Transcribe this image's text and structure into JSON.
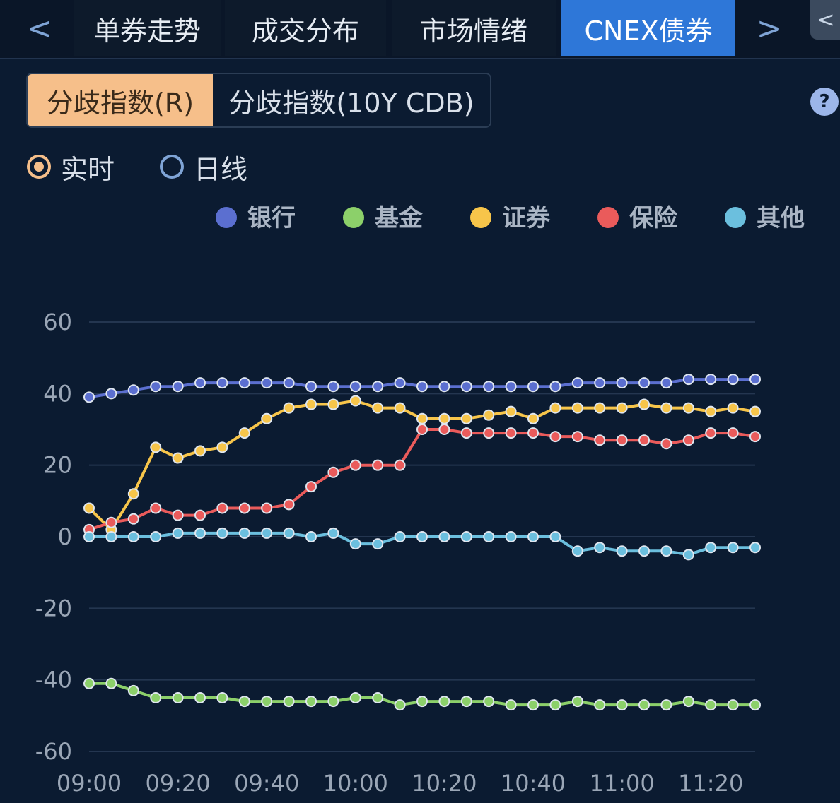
{
  "tabs": [
    {
      "label": "单券走势",
      "active": false
    },
    {
      "label": "成交分布",
      "active": false
    },
    {
      "label": "市场情绪",
      "active": false
    },
    {
      "label": "CNEX债券",
      "active": true
    }
  ],
  "nav": {
    "prev": "<",
    "next": ">",
    "corner": "<"
  },
  "segment": {
    "active_label": "分歧指数(R)",
    "inactive_label": "分歧指数(10Y CDB)"
  },
  "help": {
    "label": "?"
  },
  "mode": {
    "realtime_label": "实时",
    "daily_label": "日线",
    "selected": "实时"
  },
  "colors": {
    "bank": "#5b6fd0",
    "fund": "#8cd06a",
    "securities": "#f7c54a",
    "insurance": "#ea5b5b",
    "other": "#6bbfde"
  },
  "chart_data": {
    "type": "line",
    "legend_position": "top-right",
    "grid": true,
    "ylim": [
      -60,
      60
    ],
    "yticks": [
      60,
      40,
      20,
      0,
      -20,
      -40,
      -60
    ],
    "xticks": [
      "09:00",
      "09:20",
      "09:40",
      "10:00",
      "10:20",
      "10:40",
      "11:00",
      "11:20"
    ],
    "x": [
      "09:00",
      "09:05",
      "09:10",
      "09:15",
      "09:20",
      "09:25",
      "09:30",
      "09:35",
      "09:40",
      "09:45",
      "09:50",
      "09:55",
      "10:00",
      "10:05",
      "10:10",
      "10:15",
      "10:20",
      "10:25",
      "10:30",
      "10:35",
      "10:40",
      "10:45",
      "10:50",
      "10:55",
      "11:00",
      "11:05",
      "11:10",
      "11:15",
      "11:20",
      "11:25",
      "11:30"
    ],
    "series": [
      {
        "name": "银行",
        "color": "#5b6fd0",
        "values": [
          39,
          40,
          41,
          42,
          42,
          43,
          43,
          43,
          43,
          43,
          42,
          42,
          42,
          42,
          43,
          42,
          42,
          42,
          42,
          42,
          42,
          42,
          43,
          43,
          43,
          43,
          43,
          44,
          44,
          44,
          44
        ]
      },
      {
        "name": "基金",
        "color": "#8cd06a",
        "values": [
          -41,
          -41,
          -43,
          -45,
          -45,
          -45,
          -45,
          -46,
          -46,
          -46,
          -46,
          -46,
          -45,
          -45,
          -47,
          -46,
          -46,
          -46,
          -46,
          -47,
          -47,
          -47,
          -46,
          -47,
          -47,
          -47,
          -47,
          -46,
          -47,
          -47,
          -47
        ]
      },
      {
        "name": "证券",
        "color": "#f7c54a",
        "values": [
          8,
          2,
          12,
          25,
          22,
          24,
          25,
          29,
          33,
          36,
          37,
          37,
          38,
          36,
          36,
          33,
          33,
          33,
          34,
          35,
          33,
          36,
          36,
          36,
          36,
          37,
          36,
          36,
          35,
          36,
          35
        ]
      },
      {
        "name": "保险",
        "color": "#ea5b5b",
        "values": [
          2,
          4,
          5,
          8,
          6,
          6,
          8,
          8,
          8,
          9,
          14,
          18,
          20,
          20,
          20,
          30,
          30,
          29,
          29,
          29,
          29,
          28,
          28,
          27,
          27,
          27,
          26,
          27,
          29,
          29,
          28
        ]
      },
      {
        "name": "其他",
        "color": "#6bbfde",
        "values": [
          0,
          0,
          0,
          0,
          1,
          1,
          1,
          1,
          1,
          1,
          0,
          1,
          -2,
          -2,
          0,
          0,
          0,
          0,
          0,
          0,
          0,
          0,
          -4,
          -3,
          -4,
          -4,
          -4,
          -5,
          -3,
          -3,
          -3
        ]
      }
    ]
  }
}
